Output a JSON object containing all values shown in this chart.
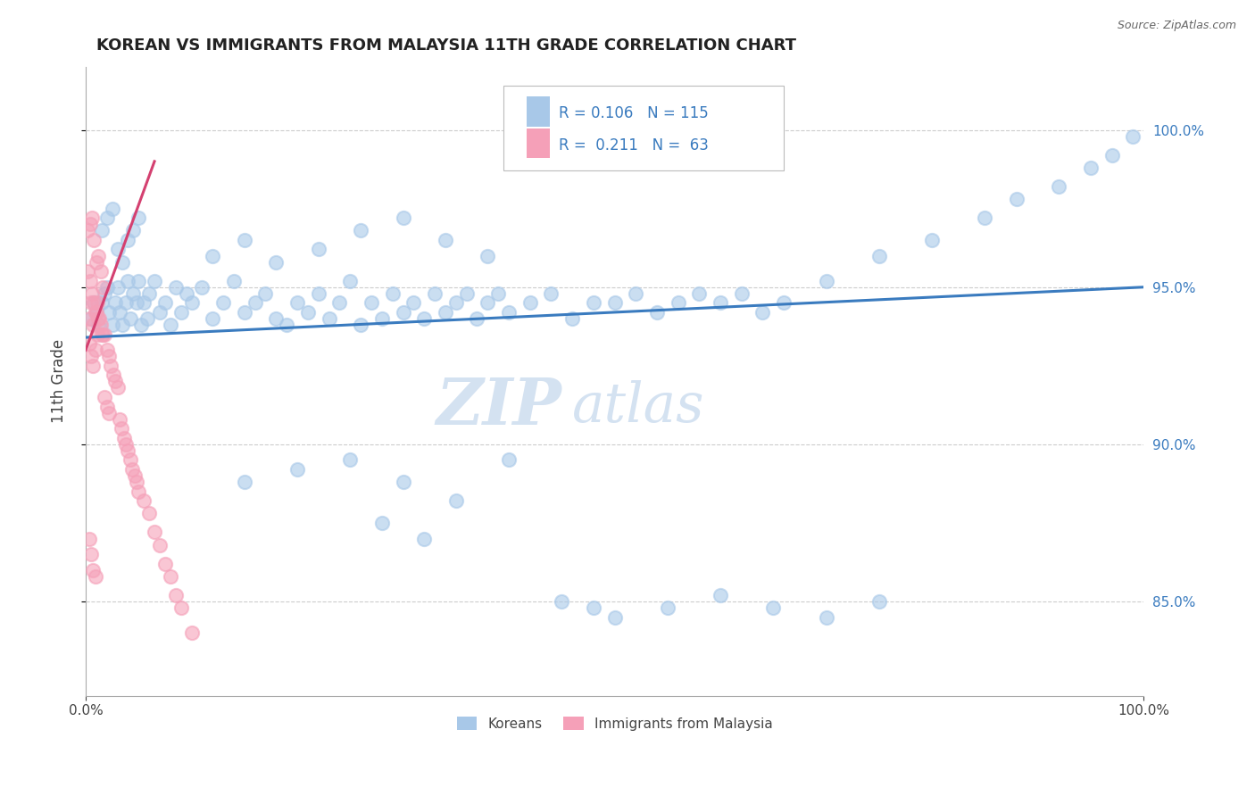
{
  "title": "KOREAN VS IMMIGRANTS FROM MALAYSIA 11TH GRADE CORRELATION CHART",
  "source_text": "Source: ZipAtlas.com",
  "ylabel": "11th Grade",
  "xlim": [
    0.0,
    1.0
  ],
  "ylim": [
    0.82,
    1.02
  ],
  "x_tick_labels": [
    "0.0%",
    "100.0%"
  ],
  "y_tick_values": [
    0.85,
    0.9,
    0.95,
    1.0
  ],
  "y_tick_labels": [
    "85.0%",
    "90.0%",
    "95.0%",
    "100.0%"
  ],
  "blue_scatter_color": "#a8c8e8",
  "pink_scatter_color": "#f5a0b8",
  "blue_line_color": "#3a7bbf",
  "pink_line_color": "#d44070",
  "stats_text_color": "#3a7bbf",
  "watermark_color": "#d0dff0",
  "legend_label_1": "Koreans",
  "legend_label_2": "Immigrants from Malaysia",
  "background_color": "#ffffff",
  "grid_color": "#cccccc",
  "blue_trend_x": [
    0.0,
    1.0
  ],
  "blue_trend_y": [
    0.934,
    0.95
  ],
  "pink_trend_x": [
    0.0,
    0.065
  ],
  "pink_trend_y": [
    0.93,
    0.99
  ],
  "blue_scatter_x": [
    0.005,
    0.008,
    0.01,
    0.012,
    0.015,
    0.018,
    0.02,
    0.022,
    0.025,
    0.028,
    0.03,
    0.032,
    0.035,
    0.038,
    0.04,
    0.042,
    0.045,
    0.048,
    0.05,
    0.052,
    0.055,
    0.058,
    0.06,
    0.065,
    0.07,
    0.075,
    0.08,
    0.085,
    0.09,
    0.095,
    0.1,
    0.11,
    0.12,
    0.13,
    0.14,
    0.15,
    0.16,
    0.17,
    0.18,
    0.19,
    0.2,
    0.21,
    0.22,
    0.23,
    0.24,
    0.25,
    0.26,
    0.27,
    0.28,
    0.29,
    0.3,
    0.31,
    0.32,
    0.33,
    0.34,
    0.35,
    0.36,
    0.37,
    0.38,
    0.39,
    0.4,
    0.42,
    0.44,
    0.46,
    0.48,
    0.5,
    0.52,
    0.54,
    0.56,
    0.58,
    0.6,
    0.62,
    0.64,
    0.66,
    0.7,
    0.75,
    0.8,
    0.85,
    0.88,
    0.92,
    0.95,
    0.97,
    0.99,
    0.015,
    0.02,
    0.025,
    0.03,
    0.035,
    0.04,
    0.045,
    0.05,
    0.12,
    0.15,
    0.18,
    0.22,
    0.26,
    0.3,
    0.34,
    0.38,
    0.15,
    0.2,
    0.25,
    0.3,
    0.35,
    0.4,
    0.28,
    0.32,
    0.45,
    0.48,
    0.5,
    0.55,
    0.6,
    0.65,
    0.7,
    0.75
  ],
  "blue_scatter_y": [
    0.94,
    0.945,
    0.942,
    0.938,
    0.945,
    0.948,
    0.95,
    0.942,
    0.938,
    0.945,
    0.95,
    0.942,
    0.938,
    0.945,
    0.952,
    0.94,
    0.948,
    0.945,
    0.952,
    0.938,
    0.945,
    0.94,
    0.948,
    0.952,
    0.942,
    0.945,
    0.938,
    0.95,
    0.942,
    0.948,
    0.945,
    0.95,
    0.94,
    0.945,
    0.952,
    0.942,
    0.945,
    0.948,
    0.94,
    0.938,
    0.945,
    0.942,
    0.948,
    0.94,
    0.945,
    0.952,
    0.938,
    0.945,
    0.94,
    0.948,
    0.942,
    0.945,
    0.94,
    0.948,
    0.942,
    0.945,
    0.948,
    0.94,
    0.945,
    0.948,
    0.942,
    0.945,
    0.948,
    0.94,
    0.945,
    0.945,
    0.948,
    0.942,
    0.945,
    0.948,
    0.945,
    0.948,
    0.942,
    0.945,
    0.952,
    0.96,
    0.965,
    0.972,
    0.978,
    0.982,
    0.988,
    0.992,
    0.998,
    0.968,
    0.972,
    0.975,
    0.962,
    0.958,
    0.965,
    0.968,
    0.972,
    0.96,
    0.965,
    0.958,
    0.962,
    0.968,
    0.972,
    0.965,
    0.96,
    0.888,
    0.892,
    0.895,
    0.888,
    0.882,
    0.895,
    0.875,
    0.87,
    0.85,
    0.848,
    0.845,
    0.848,
    0.852,
    0.848,
    0.845,
    0.85
  ],
  "pink_scatter_x": [
    0.002,
    0.004,
    0.006,
    0.008,
    0.01,
    0.012,
    0.014,
    0.016,
    0.002,
    0.004,
    0.006,
    0.008,
    0.01,
    0.012,
    0.014,
    0.016,
    0.003,
    0.005,
    0.007,
    0.009,
    0.011,
    0.013,
    0.015,
    0.003,
    0.005,
    0.007,
    0.009,
    0.011,
    0.018,
    0.02,
    0.022,
    0.024,
    0.026,
    0.028,
    0.03,
    0.018,
    0.02,
    0.022,
    0.032,
    0.034,
    0.036,
    0.038,
    0.04,
    0.042,
    0.044,
    0.046,
    0.048,
    0.05,
    0.003,
    0.005,
    0.007,
    0.009,
    0.055,
    0.06,
    0.065,
    0.07,
    0.075,
    0.08,
    0.085,
    0.09,
    0.1
  ],
  "pink_scatter_y": [
    0.968,
    0.97,
    0.972,
    0.965,
    0.958,
    0.96,
    0.955,
    0.95,
    0.955,
    0.952,
    0.948,
    0.945,
    0.942,
    0.94,
    0.938,
    0.935,
    0.94,
    0.945,
    0.938,
    0.942,
    0.945,
    0.94,
    0.935,
    0.932,
    0.928,
    0.925,
    0.93,
    0.935,
    0.935,
    0.93,
    0.928,
    0.925,
    0.922,
    0.92,
    0.918,
    0.915,
    0.912,
    0.91,
    0.908,
    0.905,
    0.902,
    0.9,
    0.898,
    0.895,
    0.892,
    0.89,
    0.888,
    0.885,
    0.87,
    0.865,
    0.86,
    0.858,
    0.882,
    0.878,
    0.872,
    0.868,
    0.862,
    0.858,
    0.852,
    0.848,
    0.84
  ]
}
